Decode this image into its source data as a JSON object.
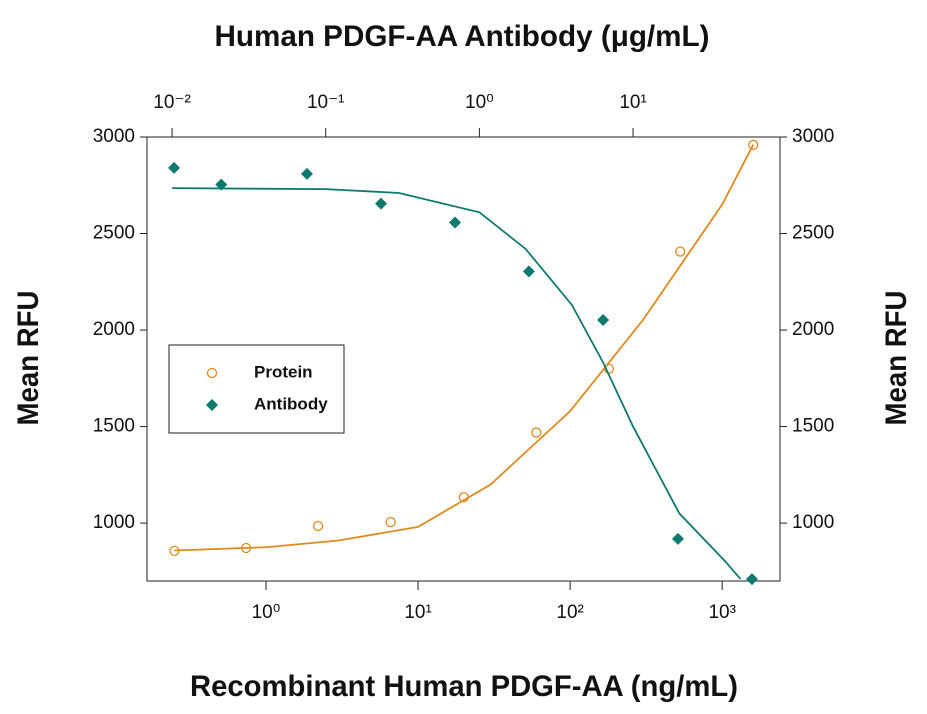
{
  "chart_data": {
    "type": "scatter",
    "title": "Human PDGF-AA Antibody (μg/mL)",
    "x_label": "Recombinant Human PDGF-AA (ng/mL)",
    "y_label": "Mean RFU",
    "y2_label": "Mean RFU",
    "xscale": "log",
    "x2scale": "log",
    "xlim": [
      0.165,
      2400
    ],
    "xticks": [
      {
        "value": 1,
        "label": "10⁰"
      },
      {
        "value": 10,
        "label": "10¹"
      },
      {
        "value": 100,
        "label": "10²"
      },
      {
        "value": 1000,
        "label": "10³"
      }
    ],
    "x2lim": [
      0.00687,
      90.4
    ],
    "x2ticks": [
      {
        "value": 0.01,
        "label": "10⁻²"
      },
      {
        "value": 0.1,
        "label": "10⁻¹"
      },
      {
        "value": 1,
        "label": "10⁰"
      },
      {
        "value": 10,
        "label": "10¹"
      }
    ],
    "ylim": [
      700,
      3000
    ],
    "yticks": [
      1000,
      1500,
      2000,
      2500,
      3000
    ],
    "y2lim": [
      700,
      3000
    ],
    "y2ticks": [
      1000,
      1500,
      2000,
      2500,
      3000
    ],
    "legend": "center-left",
    "series": [
      {
        "name": "Protein",
        "color": "#e08a1e",
        "marker": "circle",
        "xaxis": "x",
        "x": [
          0.25,
          0.74,
          2.2,
          6.6,
          20,
          60,
          180,
          530,
          1600
        ],
        "values": [
          856,
          871,
          985,
          1005,
          1134,
          1469,
          1799,
          2407,
          2959
        ],
        "curve_x": [
          0.25,
          1,
          3,
          10,
          30,
          100,
          300,
          1000,
          1600
        ],
        "curve_values": [
          858,
          875,
          910,
          980,
          1200,
          1580,
          2050,
          2650,
          2960
        ]
      },
      {
        "name": "Antibody",
        "color": "#0d7a70",
        "marker": "diamond",
        "xaxis": "x2",
        "x": [
          0.0103,
          0.0209,
          0.0755,
          0.229,
          0.694,
          2.1,
          6.38,
          19.6,
          59.4
        ],
        "values": [
          2840,
          2753,
          2809,
          2655,
          2557,
          2304,
          2052,
          918,
          710
        ],
        "curve_x": [
          0.01,
          0.1,
          0.3,
          1,
          2,
          4,
          6.4,
          10,
          20,
          40,
          50
        ],
        "curve_values": [
          2735,
          2730,
          2710,
          2610,
          2420,
          2130,
          1830,
          1500,
          1050,
          800,
          710
        ]
      }
    ]
  }
}
